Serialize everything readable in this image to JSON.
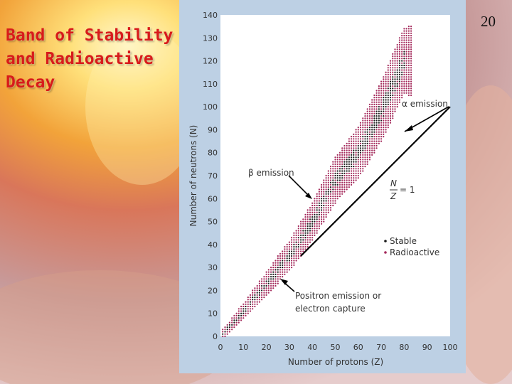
{
  "slide": {
    "title": "Band of Stability\nand Radioactive\nDecay",
    "page_number": "20"
  },
  "colors": {
    "title": "#d81b1b",
    "panel": "#bdd0e4",
    "plot_bg": "#ffffff",
    "stable": "#1a1a1a",
    "radioactive": "#a3285a"
  },
  "chart_data": {
    "type": "scatter",
    "title": "",
    "xlabel": "Number of protons (Z)",
    "ylabel": "Number of neutrons (N)",
    "xlim": [
      0,
      100
    ],
    "ylim": [
      0,
      140
    ],
    "x_ticks": [
      0,
      10,
      20,
      30,
      40,
      50,
      60,
      70,
      80,
      90,
      100
    ],
    "y_ticks": [
      0,
      10,
      20,
      30,
      40,
      50,
      60,
      70,
      80,
      90,
      100,
      110,
      120,
      130,
      140
    ],
    "grid": false,
    "legend_position": "lower-right",
    "series": [
      {
        "name": "Stable",
        "color": "#1a1a1a"
      },
      {
        "name": "Radioactive",
        "color": "#a3285a"
      }
    ],
    "band_center": {
      "z": [
        1,
        10,
        20,
        30,
        40,
        50,
        60,
        70,
        80
      ],
      "n": [
        1,
        11,
        23,
        35,
        50,
        68,
        80,
        98,
        120
      ]
    },
    "reference_line": {
      "label_num": "N",
      "label_den": "Z",
      "label_suffix": "= 1",
      "from": [
        35,
        35
      ],
      "to": [
        100,
        100
      ]
    },
    "annotations": {
      "alpha": "α emission",
      "beta": "β emission",
      "positron_line1": "Positron emission or",
      "positron_line2": "electron capture"
    }
  }
}
